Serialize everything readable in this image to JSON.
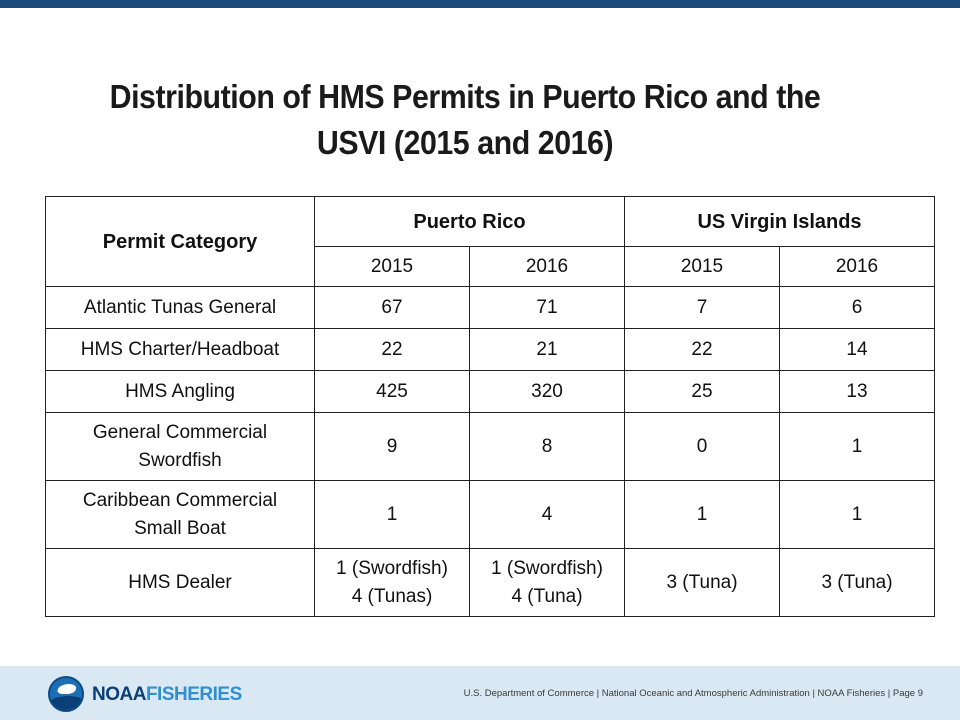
{
  "slide": {
    "title_line1": "Distribution of HMS Permits in Puerto Rico and the",
    "title_line2": "USVI (2015 and 2016)"
  },
  "table": {
    "header": {
      "category": "Permit Category",
      "region1": "Puerto Rico",
      "region2": "US Virgin Islands",
      "years": [
        "2015",
        "2016",
        "2015",
        "2016"
      ]
    },
    "rows": [
      {
        "category": [
          "Atlantic Tunas General"
        ],
        "values": [
          [
            "67"
          ],
          [
            "71"
          ],
          [
            "7"
          ],
          [
            "6"
          ]
        ]
      },
      {
        "category": [
          "HMS Charter/Headboat"
        ],
        "values": [
          [
            "22"
          ],
          [
            "21"
          ],
          [
            "22"
          ],
          [
            "14"
          ]
        ]
      },
      {
        "category": [
          "HMS Angling"
        ],
        "values": [
          [
            "425"
          ],
          [
            "320"
          ],
          [
            "25"
          ],
          [
            "13"
          ]
        ]
      },
      {
        "category": [
          "General Commercial",
          "Swordfish"
        ],
        "values": [
          [
            "9"
          ],
          [
            "8"
          ],
          [
            "0"
          ],
          [
            "1"
          ]
        ]
      },
      {
        "category": [
          "Caribbean Commercial",
          "Small Boat"
        ],
        "values": [
          [
            "1"
          ],
          [
            "4"
          ],
          [
            "1"
          ],
          [
            "1"
          ]
        ]
      },
      {
        "category": [
          "HMS Dealer"
        ],
        "values": [
          [
            "1 (Swordfish)",
            "4 (Tunas)"
          ],
          [
            "1 (Swordfish)",
            "4 (Tuna)"
          ],
          [
            "3 (Tuna)"
          ],
          [
            "3 (Tuna)"
          ]
        ]
      }
    ]
  },
  "footer": {
    "brand_noaa": "NOAA",
    "brand_fisheries": "FISHERIES",
    "logo_icon": "noaa-logo",
    "text": "U.S. Department of Commerce | National Oceanic and Atmospheric Administration | NOAA Fisheries | Page 9"
  },
  "colors": {
    "top_bar": "#1b4a7c",
    "footer_bg": "#d9e8f2",
    "brand_dark": "#0b3f78",
    "brand_light": "#2f8fd0"
  }
}
